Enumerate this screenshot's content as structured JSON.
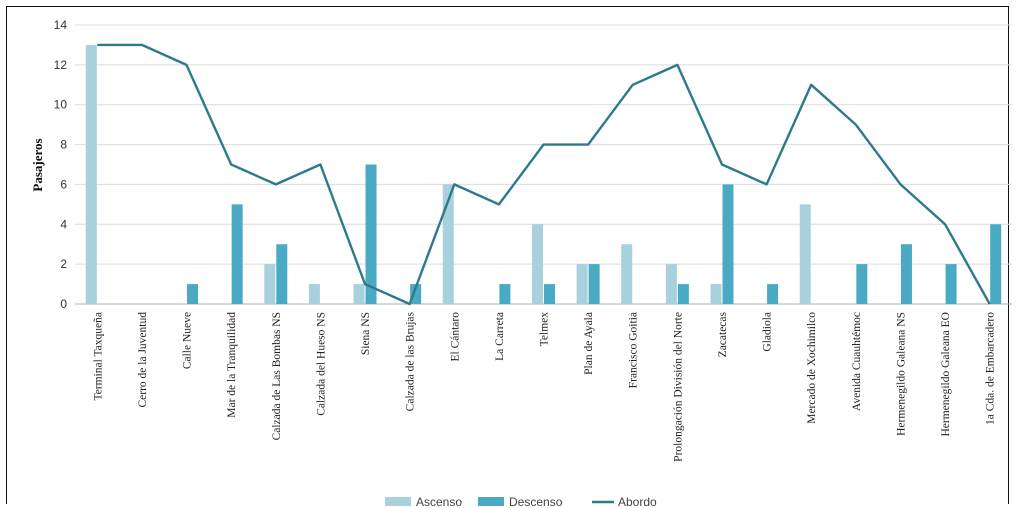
{
  "chart_data": {
    "type": "bar",
    "title": "",
    "xlabel": "",
    "ylabel": "Pasajeros",
    "ylim": [
      0,
      14
    ],
    "yticks": [
      0,
      2,
      4,
      6,
      8,
      10,
      12,
      14
    ],
    "grid": true,
    "legend": "bottom",
    "categories": [
      "Terminal Taxqueña",
      "Cerro de la Juventud",
      "Calle Nueve",
      "Mar de la Tranquilidad",
      "Calzada de Las Bombas NS",
      "Calzada del Hueso NS",
      "Siena NS",
      "Calzada de las Brujas",
      "El Cántaro",
      "La Carreta",
      "Telmex",
      "Plan de Ayala",
      "Francisco Goitia",
      "Prolongación División del Norte",
      "Zacatecas",
      "Gladiola",
      "Mercado de Xochimilco",
      "Avenida Cuauhtémoc",
      "Hermenegildo Galeana NS",
      "Hermenegildo Galeana EO",
      "1a Cda. de Embarcadero"
    ],
    "series": [
      {
        "name": "Ascenso",
        "type": "bar",
        "color": "#a8d0dd",
        "values": [
          13,
          0,
          0,
          0,
          2,
          1,
          1,
          0,
          6,
          0,
          4,
          2,
          3,
          2,
          1,
          0,
          5,
          0,
          0,
          0,
          0
        ]
      },
      {
        "name": "Descenso",
        "type": "bar",
        "color": "#4aa9c3",
        "values": [
          0,
          0,
          1,
          5,
          3,
          0,
          7,
          1,
          0,
          1,
          1,
          2,
          0,
          1,
          6,
          1,
          0,
          2,
          3,
          2,
          4
        ]
      },
      {
        "name": "Abordo",
        "type": "line",
        "color": "#2e7a8c",
        "values": [
          13,
          13,
          12,
          7,
          6,
          7,
          1,
          0,
          6,
          5,
          8,
          8,
          11,
          12,
          7,
          6,
          11,
          9,
          6,
          4,
          0
        ]
      }
    ]
  }
}
